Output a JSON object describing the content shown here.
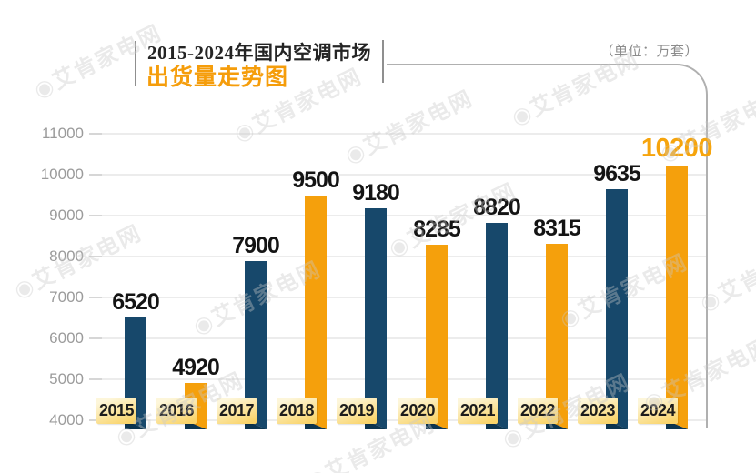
{
  "header": {
    "title_line1": "2015-2024年国内空调市场",
    "title_line2": "出货量走势图",
    "unit_label": "（单位：万套）"
  },
  "watermark": {
    "text": "艾肯家电网",
    "logo_glyph": "◉"
  },
  "colors": {
    "navy": "#17486B",
    "navy_dark": "#0C3550",
    "orange": "#F5A00C",
    "highlight_label": "#F6A40C",
    "value_label": "#141414",
    "grid": "#ECECEC",
    "axis_label": "#9B9B9B",
    "frame": "#B0B0B0",
    "title_accent": "#F59D0B"
  },
  "chart_data": {
    "type": "bar",
    "title": "2015-2024年国内空调市场出货量走势图",
    "unit": "万套",
    "categories": [
      "2015",
      "2016",
      "2017",
      "2018",
      "2019",
      "2020",
      "2021",
      "2022",
      "2023",
      "2024"
    ],
    "values": [
      6520,
      4920,
      7900,
      9500,
      9180,
      8285,
      8820,
      8315,
      9635,
      10200
    ],
    "bar_colors": [
      "#17486B",
      "#F5A00C",
      "#17486B",
      "#F5A00C",
      "#17486B",
      "#F5A00C",
      "#17486B",
      "#F5A00C",
      "#17486B",
      "#F5A00C"
    ],
    "highlight_index": 9,
    "ylim": [
      4000,
      11000
    ],
    "ytick_step": 1000,
    "yticks": [
      4000,
      5000,
      6000,
      7000,
      8000,
      9000,
      10000,
      11000
    ],
    "grid": "on",
    "legend": "none",
    "xlabel": "",
    "ylabel": ""
  }
}
